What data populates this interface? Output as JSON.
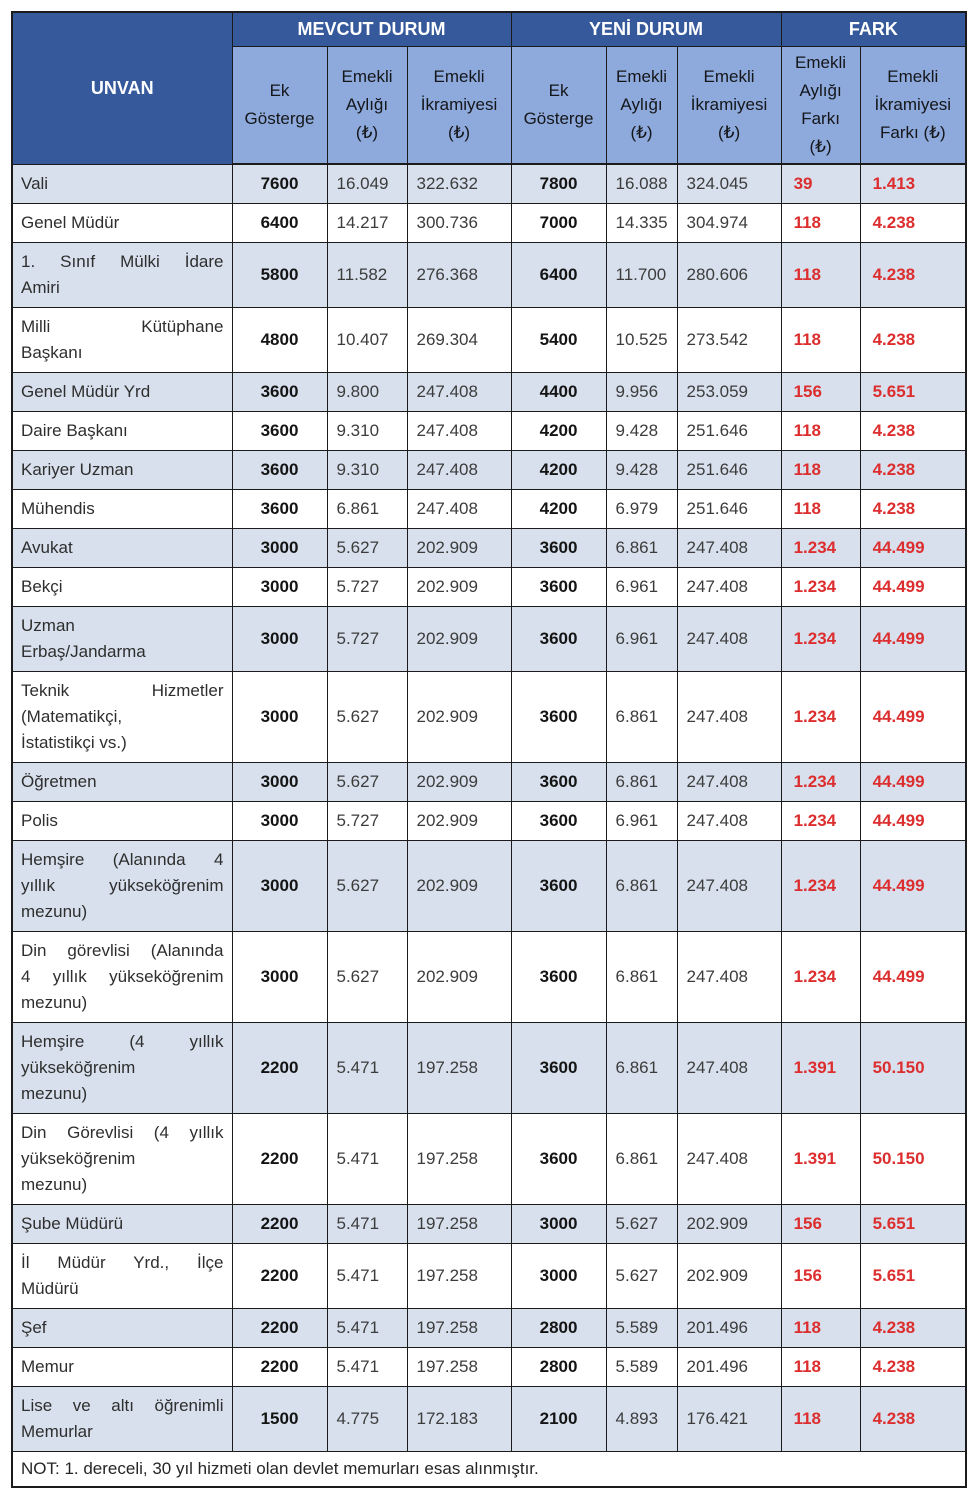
{
  "colors": {
    "dark": "#35599B",
    "sub": "#8EA9DB",
    "rowblue": "#D7E0EC",
    "red": "#DC2E2E",
    "border": "#1b1b1b"
  },
  "table": {
    "header": {
      "unvan": "UNVAN",
      "groups": [
        {
          "label": "MEVCUT DURUM",
          "span": 3
        },
        {
          "label": "YENİ DURUM",
          "span": 3
        },
        {
          "label": "FARK",
          "span": 2
        }
      ],
      "subheaders": [
        "Ek\nGösterge",
        "Emekli\nAylığı\n(₺)",
        "Emekli\nİkramiyesi\n(₺)",
        "Ek\nGösterge",
        "Emekli\nAylığı\n(₺)",
        "Emekli\nİkramiyesi\n(₺)",
        "Emekli\nAylığı\nFarkı\n(₺)",
        "Emekli\nİkramiyesi\nFarkı (₺)"
      ]
    },
    "rows": [
      {
        "unvan": "Vali",
        "unvan_lines": [
          "Vali"
        ],
        "values": [
          "7600",
          "16.049",
          "322.632",
          "7800",
          "16.088",
          "324.045",
          "39",
          "1.413"
        ]
      },
      {
        "unvan": "Genel Müdür",
        "unvan_lines": [
          "Genel Müdür"
        ],
        "values": [
          "6400",
          "14.217",
          "300.736",
          "7000",
          "14.335",
          "304.974",
          "118",
          "4.238"
        ]
      },
      {
        "unvan": "1. Sınıf Mülki İdare Amiri",
        "unvan_lines": [
          "1. Sınıf Mülki İdare",
          "Amiri"
        ],
        "values": [
          "5800",
          "11.582",
          "276.368",
          "6400",
          "11.700",
          "280.606",
          "118",
          "4.238"
        ]
      },
      {
        "unvan": "Milli Kütüphane Başkanı",
        "unvan_lines": [
          "Milli Kütüphane",
          "Başkanı"
        ],
        "values": [
          "4800",
          "10.407",
          "269.304",
          "5400",
          "10.525",
          "273.542",
          "118",
          "4.238"
        ]
      },
      {
        "unvan": "Genel Müdür Yrd",
        "unvan_lines": [
          "Genel Müdür Yrd"
        ],
        "values": [
          "3600",
          "9.800",
          "247.408",
          "4400",
          "9.956",
          "253.059",
          "156",
          "5.651"
        ]
      },
      {
        "unvan": "Daire Başkanı",
        "unvan_lines": [
          "Daire Başkanı"
        ],
        "values": [
          "3600",
          "9.310",
          "247.408",
          "4200",
          "9.428",
          "251.646",
          "118",
          "4.238"
        ]
      },
      {
        "unvan": "Kariyer Uzman",
        "unvan_lines": [
          "Kariyer Uzman"
        ],
        "values": [
          "3600",
          "9.310",
          "247.408",
          "4200",
          "9.428",
          "251.646",
          "118",
          "4.238"
        ]
      },
      {
        "unvan": "Mühendis",
        "unvan_lines": [
          "Mühendis"
        ],
        "values": [
          "3600",
          "6.861",
          "247.408",
          "4200",
          "6.979",
          "251.646",
          "118",
          "4.238"
        ]
      },
      {
        "unvan": "Avukat",
        "unvan_lines": [
          "Avukat"
        ],
        "values": [
          "3000",
          "5.627",
          "202.909",
          "3600",
          "6.861",
          "247.408",
          "1.234",
          "44.499"
        ]
      },
      {
        "unvan": "Bekçi",
        "unvan_lines": [
          "Bekçi"
        ],
        "values": [
          "3000",
          "5.727",
          "202.909",
          "3600",
          "6.961",
          "247.408",
          "1.234",
          "44.499"
        ]
      },
      {
        "unvan": "Uzman Erbaş/Jandarma",
        "unvan_lines": [
          "Uzman",
          "Erbaş/Jandarma"
        ],
        "values": [
          "3000",
          "5.727",
          "202.909",
          "3600",
          "6.961",
          "247.408",
          "1.234",
          "44.499"
        ]
      },
      {
        "unvan": "Teknik Hizmetler (Matematikçi, İstatistikçi vs.)",
        "unvan_lines": [
          "Teknik Hizmetler",
          "(Matematikçi,",
          "İstatistikçi vs.)"
        ],
        "values": [
          "3000",
          "5.627",
          "202.909",
          "3600",
          "6.861",
          "247.408",
          "1.234",
          "44.499"
        ]
      },
      {
        "unvan": "Öğretmen",
        "unvan_lines": [
          "Öğretmen"
        ],
        "values": [
          "3000",
          "5.627",
          "202.909",
          "3600",
          "6.861",
          "247.408",
          "1.234",
          "44.499"
        ]
      },
      {
        "unvan": "Polis",
        "unvan_lines": [
          "Polis"
        ],
        "values": [
          "3000",
          "5.727",
          "202.909",
          "3600",
          "6.961",
          "247.408",
          "1.234",
          "44.499"
        ]
      },
      {
        "unvan": "Hemşire (Alanında 4 yıllık yükseköğrenim mezunu)",
        "unvan_lines": [
          "Hemşire (Alanında 4",
          "yıllık yükseköğrenim",
          "mezunu)"
        ],
        "values": [
          "3000",
          "5.627",
          "202.909",
          "3600",
          "6.861",
          "247.408",
          "1.234",
          "44.499"
        ]
      },
      {
        "unvan": "Din görevlisi (Alanında 4 yıllık yükseköğrenim mezunu)",
        "unvan_lines": [
          "Din görevlisi (Alanında",
          "4 yıllık yükseköğrenim",
          "mezunu)"
        ],
        "values": [
          "3000",
          "5.627",
          "202.909",
          "3600",
          "6.861",
          "247.408",
          "1.234",
          "44.499"
        ]
      },
      {
        "unvan": "Hemşire (4 yıllık yükseköğrenim mezunu)",
        "unvan_lines": [
          "Hemşire (4 yıllık",
          "yükseköğrenim",
          "mezunu)"
        ],
        "values": [
          "2200",
          "5.471",
          "197.258",
          "3600",
          "6.861",
          "247.408",
          "1.391",
          "50.150"
        ]
      },
      {
        "unvan": "Din Görevlisi (4 yıllık yükseköğrenim mezunu)",
        "unvan_lines": [
          "Din Görevlisi (4 yıllık",
          "yükseköğrenim",
          "mezunu)"
        ],
        "values": [
          "2200",
          "5.471",
          "197.258",
          "3600",
          "6.861",
          "247.408",
          "1.391",
          "50.150"
        ]
      },
      {
        "unvan": "Şube Müdürü",
        "unvan_lines": [
          "Şube Müdürü"
        ],
        "values": [
          "2200",
          "5.471",
          "197.258",
          "3000",
          "5.627",
          "202.909",
          "156",
          "5.651"
        ]
      },
      {
        "unvan": "İl Müdür Yrd., İlçe Müdürü",
        "unvan_lines": [
          "İl Müdür Yrd., İlçe",
          "Müdürü"
        ],
        "values": [
          "2200",
          "5.471",
          "197.258",
          "3000",
          "5.627",
          "202.909",
          "156",
          "5.651"
        ]
      },
      {
        "unvan": "Şef",
        "unvan_lines": [
          "Şef"
        ],
        "values": [
          "2200",
          "5.471",
          "197.258",
          "2800",
          "5.589",
          "201.496",
          "118",
          "4.238"
        ]
      },
      {
        "unvan": "Memur",
        "unvan_lines": [
          "Memur"
        ],
        "values": [
          "2200",
          "5.471",
          "197.258",
          "2800",
          "5.589",
          "201.496",
          "118",
          "4.238"
        ]
      },
      {
        "unvan": "Lise ve altı öğrenimli Memurlar",
        "unvan_lines": [
          "Lise ve altı öğrenimli",
          "Memurlar"
        ],
        "values": [
          "1500",
          "4.775",
          "172.183",
          "2100",
          "4.893",
          "176.421",
          "118",
          "4.238"
        ]
      }
    ],
    "note": "NOT: 1. dereceli, 30 yıl hizmeti olan devlet memurları esas alınmıştır."
  }
}
